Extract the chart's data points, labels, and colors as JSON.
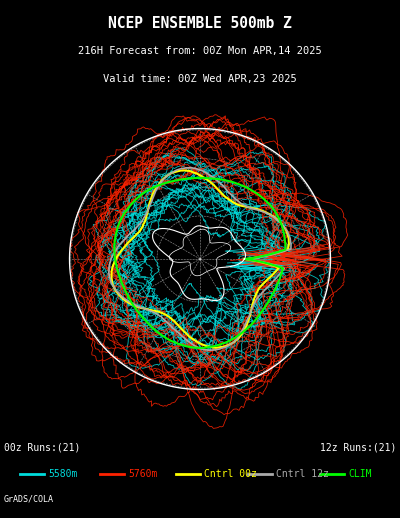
{
  "title_line1": "NCEP ENSEMBLE 500mb Z",
  "title_line2": "216H Forecast from: 00Z Mon APR,14 2025",
  "title_line3": "Valid time: 00Z Wed APR,23 2025",
  "legend_left": "00z Runs:(21)",
  "legend_right": "12z Runs:(21)",
  "legend_items": [
    {
      "label": "5580m",
      "color": "#00FFFF",
      "ls": "-"
    },
    {
      "label": "5760m",
      "color": "#FF3300",
      "ls": "-"
    },
    {
      "label": "Cntrl 00z",
      "color": "#FFFF00",
      "ls": "-"
    },
    {
      "label": "Cntrl 12z",
      "color": "#AAAAAA",
      "ls": "-"
    },
    {
      "label": "CLIM",
      "color": "#00FF00",
      "ls": "-"
    }
  ],
  "credit": "GrADS/COLA",
  "background_color": "#000000",
  "plot_bg_color": "#000000",
  "n_ensemble_cyan": 21,
  "n_ensemble_red": 21,
  "cyan_color": "#00DDDD",
  "red_color": "#FF2200",
  "yellow_color": "#FFFF00",
  "gray_color": "#AAAAAA",
  "green_color": "#00FF00",
  "white_color": "#FFFFFF",
  "dashed_white": "#FFFFFF"
}
